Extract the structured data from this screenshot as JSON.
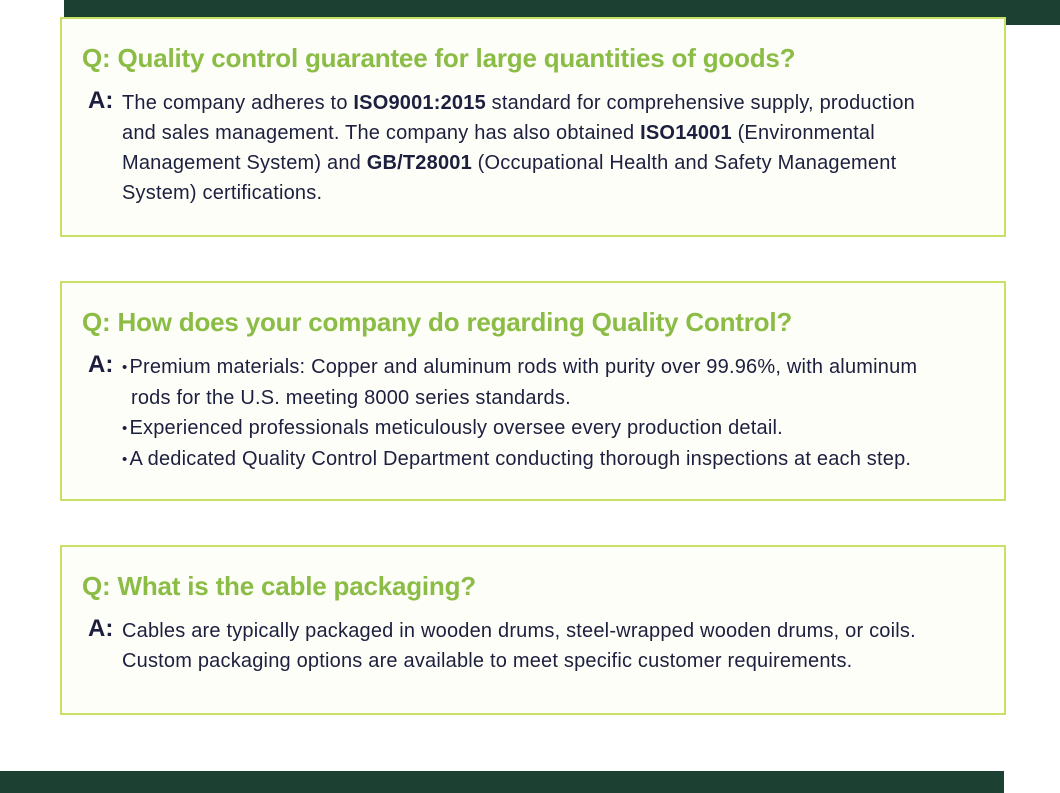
{
  "labels": {
    "a_prefix": "A:"
  },
  "bullet": "•",
  "colors": {
    "question_green": "#8bbc45",
    "card_border_lime": "#c8e165",
    "card_background": "#fdfef8",
    "answer_text_dark": "#1d1f3e",
    "ribbon_dark_green": "#1c4132",
    "page_background": "#ffffff"
  },
  "faq": [
    {
      "question": "Q: Quality control guarantee for large quantities of goods?",
      "lines": [
        {
          "segs": [
            "The company adheres to ",
            "ISO9001:2015",
            " standard for comprehensive supply, production"
          ]
        },
        {
          "segs": [
            "and sales management. The company has also obtained ",
            "ISO14001",
            " (Environmental"
          ]
        },
        {
          "segs": [
            "Management System) and ",
            "GB/T28001",
            " (Occupational Health and Safety Management"
          ]
        },
        {
          "segs": [
            "System) certifications."
          ]
        }
      ]
    },
    {
      "question": "Q: How does your company do regarding Quality Control?",
      "bullet_lines": [
        {
          "bullet": true,
          "text": "Premium materials: Copper and aluminum rods with purity over 99.96%, with aluminum"
        },
        {
          "bullet": false,
          "text": "rods for the U.S. meeting 8000 series standards."
        },
        {
          "bullet": true,
          "text": "Experienced professionals meticulously oversee every production detail."
        },
        {
          "bullet": true,
          "text": "A dedicated Quality Control Department conducting thorough inspections at each step."
        }
      ]
    },
    {
      "question": "Q: What is the cable packaging?",
      "lines": [
        {
          "segs": [
            "Cables are typically packaged in wooden drums, steel-wrapped wooden drums, or coils."
          ]
        },
        {
          "segs": [
            "Custom packaging options are available to meet specific customer requirements."
          ]
        }
      ]
    }
  ]
}
